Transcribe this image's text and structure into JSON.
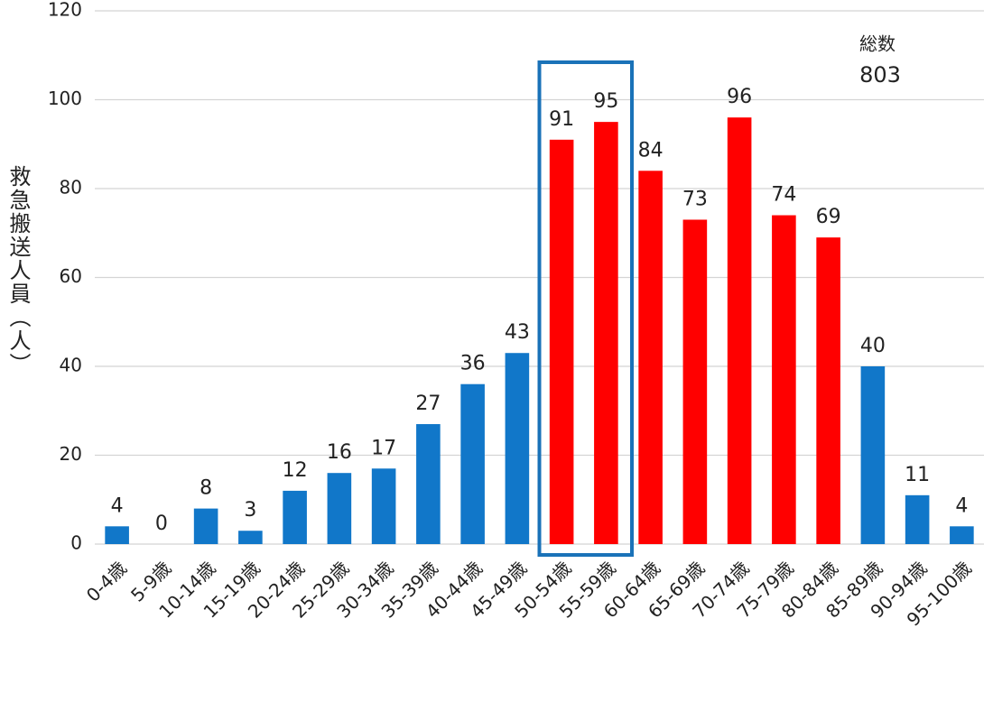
{
  "chart_data": {
    "type": "bar",
    "y_label": "救急搬送人員（人）",
    "categories": [
      "0-4歳",
      "5-9歳",
      "10-14歳",
      "15-19歳",
      "20-24歳",
      "25-29歳",
      "30-34歳",
      "35-39歳",
      "40-44歳",
      "45-49歳",
      "50-54歳",
      "55-59歳",
      "60-64歳",
      "65-69歳",
      "70-74歳",
      "75-79歳",
      "80-84歳",
      "85-89歳",
      "90-94歳",
      "95-100歳"
    ],
    "values": [
      4,
      0,
      8,
      3,
      12,
      16,
      17,
      27,
      36,
      43,
      91,
      95,
      84,
      73,
      96,
      74,
      69,
      40,
      11,
      4
    ],
    "colors": [
      "#1177c9",
      "#1177c9",
      "#1177c9",
      "#1177c9",
      "#1177c9",
      "#1177c9",
      "#1177c9",
      "#1177c9",
      "#1177c9",
      "#1177c9",
      "#ff0000",
      "#ff0000",
      "#ff0000",
      "#ff0000",
      "#ff0000",
      "#ff0000",
      "#ff0000",
      "#1177c9",
      "#1177c9",
      "#1177c9"
    ],
    "ylim": [
      0,
      120
    ],
    "yticks": [
      0,
      20,
      40,
      60,
      80,
      100,
      120
    ],
    "grid": true,
    "annotation": {
      "label": "総数",
      "value": 803
    },
    "highlight": {
      "categories": [
        "50-54歳",
        "55-59歳"
      ],
      "color": "#1a72b8"
    }
  }
}
